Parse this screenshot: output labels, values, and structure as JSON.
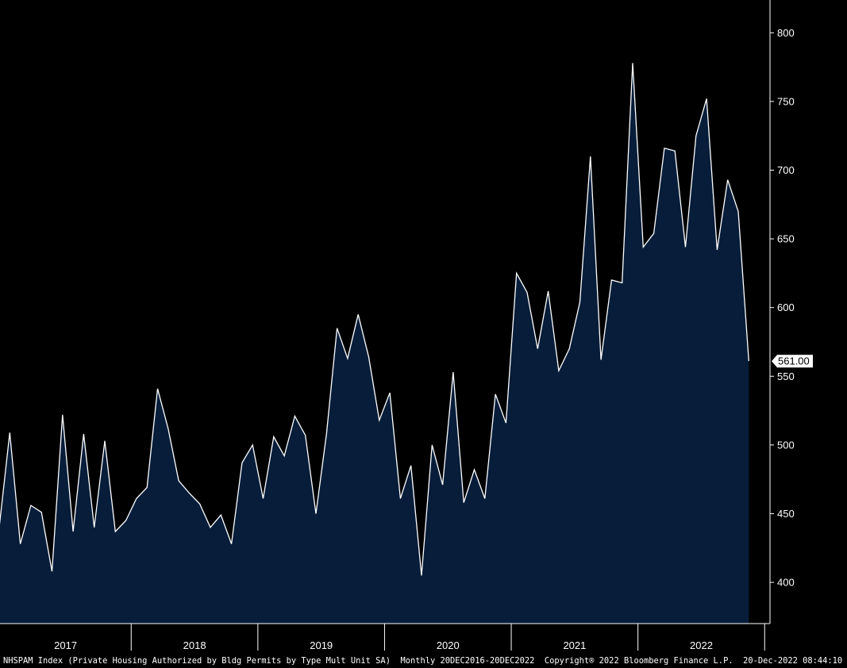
{
  "footer": {
    "ticker_text": "NHSPAM Index (Private Housing Authorized by Bldg Permits by Type Mult Unit SA)",
    "period_text": "Monthly 20DEC2016-20DEC2022",
    "copyright_text": "Copyright® 2022 Bloomberg Finance L.P.",
    "timestamp_text": "20-Dec-2022 08:44:10"
  },
  "colors": {
    "background": "#000000",
    "area_fill": "#071d3a",
    "line": "#ffffff",
    "axis": "#ffffff",
    "label_box": "#ffffff"
  },
  "chart_data": {
    "type": "area",
    "title": "",
    "xlabel": "",
    "ylabel": "",
    "ylim": [
      370,
      810
    ],
    "yticks": [
      400,
      450,
      500,
      550,
      600,
      650,
      700,
      750,
      800
    ],
    "ytick_labels": [
      "400",
      "450",
      "500",
      "550",
      "600",
      "650",
      "700",
      "750",
      "800"
    ],
    "year_labels": [
      "2017",
      "2018",
      "2019",
      "2020",
      "2021",
      "2022"
    ],
    "last_value_label": "561.00",
    "y_axis_position": "right",
    "grid": false,
    "series": [
      {
        "x": [
          "2016-12",
          "2017-01",
          "2017-02",
          "2017-03",
          "2017-04",
          "2017-05",
          "2017-06",
          "2017-07",
          "2017-08",
          "2017-09",
          "2017-10",
          "2017-11",
          "2017-12",
          "2018-01",
          "2018-02",
          "2018-03",
          "2018-04",
          "2018-05",
          "2018-06",
          "2018-07",
          "2018-08",
          "2018-09",
          "2018-10",
          "2018-11",
          "2018-12",
          "2019-01",
          "2019-02",
          "2019-03",
          "2019-04",
          "2019-05",
          "2019-06",
          "2019-07",
          "2019-08",
          "2019-09",
          "2019-10",
          "2019-11",
          "2019-12",
          "2020-01",
          "2020-02",
          "2020-03",
          "2020-04",
          "2020-05",
          "2020-06",
          "2020-07",
          "2020-08",
          "2020-09",
          "2020-10",
          "2020-11",
          "2020-12",
          "2021-01",
          "2021-02",
          "2021-03",
          "2021-04",
          "2021-05",
          "2021-06",
          "2021-07",
          "2021-08",
          "2021-09",
          "2021-10",
          "2021-11",
          "2021-12",
          "2022-01",
          "2022-02",
          "2022-03",
          "2022-04",
          "2022-05",
          "2022-06",
          "2022-07",
          "2022-08",
          "2022-09",
          "2022-10",
          "2022-11"
        ],
        "values": [
          440,
          509,
          428,
          456,
          451,
          408,
          522,
          437,
          508,
          440,
          503,
          437,
          445,
          461,
          469,
          541,
          512,
          474,
          465,
          457,
          440,
          449,
          428,
          487,
          500,
          461,
          506,
          492,
          521,
          507,
          450,
          508,
          585,
          563,
          595,
          564,
          518,
          538,
          461,
          485,
          405,
          500,
          471,
          553,
          458,
          482,
          461,
          537,
          516,
          625,
          611,
          570,
          612,
          554,
          570,
          604,
          710,
          562,
          620,
          618,
          778,
          644,
          654,
          716,
          714,
          644,
          725,
          752,
          642,
          693,
          670,
          561
        ]
      }
    ]
  }
}
